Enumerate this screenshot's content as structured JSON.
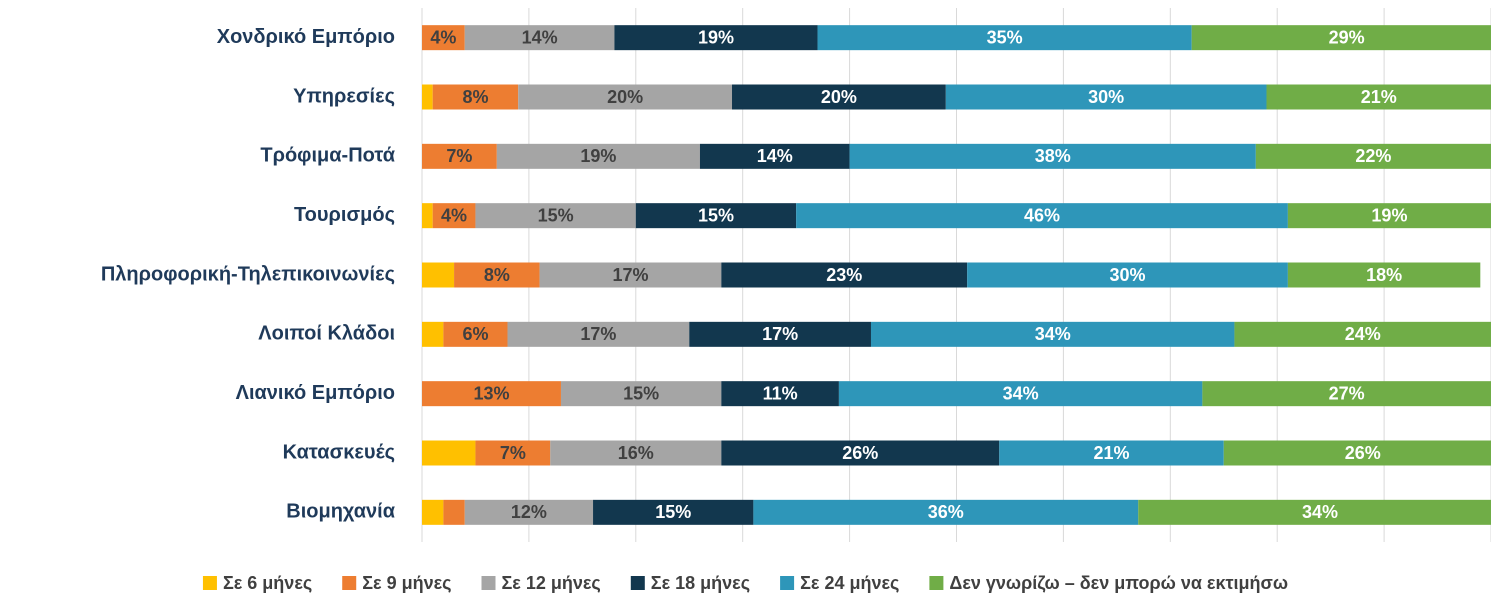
{
  "chart_data": {
    "type": "stacked_barh",
    "categories": [
      "Χονδρικό Εμπόριο",
      "Υπηρεσίες",
      "Τρόφιμα-Ποτά",
      "Τουρισμός",
      "Πληροφορική-Τηλεπικοινωνίες",
      "Λοιποί Κλάδοι",
      "Λιανικό Εμπόριο",
      "Κατασκευές",
      "Βιομηχανία"
    ],
    "series": [
      {
        "name": "Σε 6 μήνες",
        "color": "#ffc000",
        "label_color": "#404040",
        "values": [
          0,
          1,
          0,
          1,
          3,
          2,
          0,
          5,
          2
        ]
      },
      {
        "name": "Σε 9 μήνες",
        "color": "#ed7d31",
        "label_color": "#404040",
        "values": [
          4,
          8,
          7,
          4,
          8,
          6,
          13,
          7,
          2
        ],
        "value_labels": [
          "4%",
          "8%",
          "7%",
          "4%",
          "8%",
          "6%",
          "13%",
          "7%",
          null
        ]
      },
      {
        "name": "Σε 12 μήνες",
        "color": "#a5a5a5",
        "label_color": "#404040",
        "values": [
          14,
          20,
          19,
          15,
          17,
          17,
          15,
          16,
          12
        ],
        "value_labels": [
          "14%",
          "20%",
          "19%",
          "15%",
          "17%",
          "17%",
          "15%",
          "16%",
          "12%"
        ]
      },
      {
        "name": "Σε 18 μήνες",
        "color": "#12374e",
        "label_color": "#ffffff",
        "values": [
          19,
          20,
          14,
          15,
          23,
          17,
          11,
          26,
          15
        ],
        "value_labels": [
          "19%",
          "20%",
          "14%",
          "15%",
          "23%",
          "17%",
          "11%",
          "26%",
          "15%"
        ]
      },
      {
        "name": "Σε 24 μήνες",
        "color": "#2e96b9",
        "label_color": "#ffffff",
        "values": [
          35,
          30,
          38,
          46,
          30,
          34,
          34,
          21,
          36
        ],
        "value_labels": [
          "35%",
          "30%",
          "38%",
          "46%",
          "30%",
          "34%",
          "34%",
          "21%",
          "36%"
        ]
      },
      {
        "name": "Δεν γνωρίζω – δεν μπορώ να εκτιμήσω",
        "color": "#70ad47",
        "label_color": "#ffffff",
        "values": [
          29,
          21,
          22,
          19,
          18,
          24,
          27,
          26,
          34
        ],
        "value_labels": [
          "29%",
          "21%",
          "22%",
          "19%",
          "18%",
          "24%",
          "27%",
          "26%",
          "34%"
        ]
      }
    ],
    "xlim": [
      0,
      100
    ],
    "xticks": [
      0,
      10,
      20,
      30,
      40,
      50,
      60,
      70,
      80,
      90,
      100
    ],
    "grid": true,
    "legend": "bottom"
  }
}
